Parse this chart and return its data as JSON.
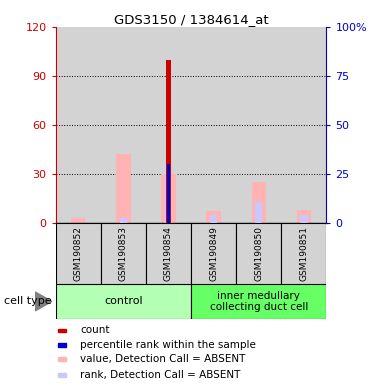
{
  "title": "GDS3150 / 1384614_at",
  "samples": [
    "GSM190852",
    "GSM190853",
    "GSM190854",
    "GSM190849",
    "GSM190850",
    "GSM190851"
  ],
  "count_values": [
    0,
    0,
    100,
    0,
    0,
    0
  ],
  "percentile_values": [
    0,
    0,
    30,
    0,
    0,
    0
  ],
  "value_absent": [
    3,
    42,
    30,
    7,
    25,
    8
  ],
  "rank_absent": [
    0,
    3,
    30,
    5,
    13,
    5
  ],
  "left_yaxis_color": "#cc0000",
  "right_yaxis_color": "#0000cc",
  "left_ylim": [
    0,
    120
  ],
  "right_ylim": [
    0,
    100
  ],
  "left_yticks": [
    0,
    30,
    60,
    90,
    120
  ],
  "right_yticks": [
    0,
    25,
    50,
    75,
    100
  ],
  "right_yticklabels": [
    "0",
    "25",
    "50",
    "75",
    "100%"
  ],
  "count_color": "#cc0000",
  "percentile_color": "#0000cc",
  "value_absent_color": "#ffb3b3",
  "rank_absent_color": "#c8c8ff",
  "bg_color": "#d3d3d3",
  "plot_bg": "#ffffff",
  "cell_type_label": "cell type",
  "group1_name": "control",
  "group1_color": "#b3ffb3",
  "group2_name": "inner medullary\ncollecting duct cell",
  "group2_color": "#66ff66",
  "legend_items": [
    {
      "color": "#cc0000",
      "label": "count"
    },
    {
      "color": "#0000cc",
      "label": "percentile rank within the sample"
    },
    {
      "color": "#ffb3b3",
      "label": "value, Detection Call = ABSENT"
    },
    {
      "color": "#c8c8ff",
      "label": "rank, Detection Call = ABSENT"
    }
  ]
}
